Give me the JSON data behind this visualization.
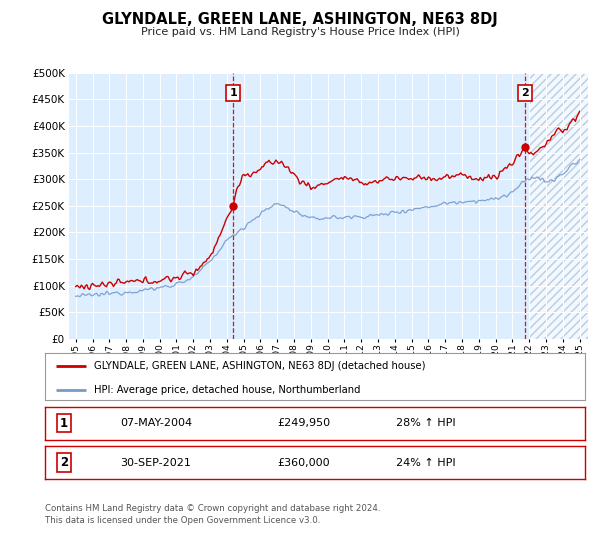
{
  "title": "GLYNDALE, GREEN LANE, ASHINGTON, NE63 8DJ",
  "subtitle": "Price paid vs. HM Land Registry's House Price Index (HPI)",
  "legend_line1": "GLYNDALE, GREEN LANE, ASHINGTON, NE63 8DJ (detached house)",
  "legend_line2": "HPI: Average price, detached house, Northumberland",
  "sale1_label": "1",
  "sale2_label": "2",
  "sale1_date": "07-MAY-2004",
  "sale1_price": "£249,950",
  "sale1_hpi": "28% ↑ HPI",
  "sale2_date": "30-SEP-2021",
  "sale2_price": "£360,000",
  "sale2_hpi": "24% ↑ HPI",
  "footnote_line1": "Contains HM Land Registry data © Crown copyright and database right 2024.",
  "footnote_line2": "This data is licensed under the Open Government Licence v3.0.",
  "red_color": "#cc0000",
  "blue_color": "#7799cc",
  "bg_color": "#ddeeff",
  "hatch_color": "#bbccdd",
  "ylim": [
    0,
    500000
  ],
  "ytick_vals": [
    0,
    50000,
    100000,
    150000,
    200000,
    250000,
    300000,
    350000,
    400000,
    450000,
    500000
  ],
  "ytick_labels": [
    "£0",
    "£50K",
    "£100K",
    "£150K",
    "£200K",
    "£250K",
    "£300K",
    "£350K",
    "£400K",
    "£450K",
    "£500K"
  ],
  "xmin": 1995,
  "xmax": 2025,
  "sale1_x": 2004.37,
  "sale1_y": 249950,
  "sale2_x": 2021.75,
  "sale2_y": 360000,
  "hatch_start": 2022.0
}
